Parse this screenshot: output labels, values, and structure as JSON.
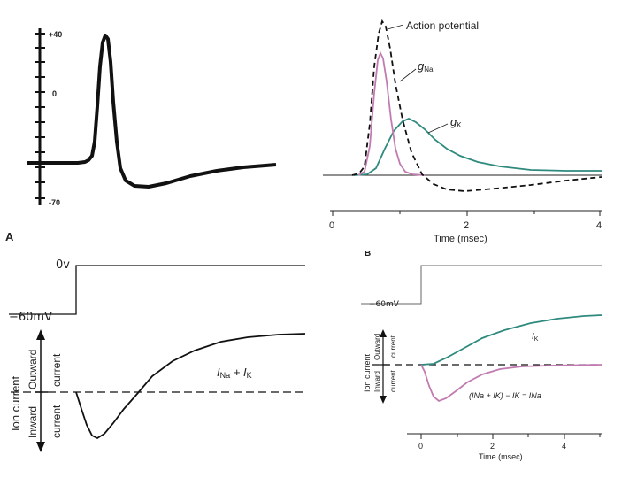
{
  "panel_a_recording": {
    "tick_labels": [
      "+40",
      "0",
      "-70"
    ]
  },
  "panel_a_label": "A",
  "panel_b_conductances": {
    "series": [
      {
        "name": "Action potential",
        "color": "#111111",
        "style": "dashed"
      },
      {
        "name": "gNa",
        "color": "#c27bb0",
        "style": "solid"
      },
      {
        "name": "gK",
        "color": "#2f8a7e",
        "style": "solid"
      }
    ],
    "labels": {
      "action_potential": "Action potential",
      "g_na_letter": "g",
      "g_na_sub": "Na",
      "g_k_letter": "g",
      "g_k_sub": "K"
    },
    "x_ticks": [
      "0",
      "2",
      "4"
    ],
    "x_label": "Time (msec)"
  },
  "panel_b_label_fragment": "B",
  "panel_c_clamp": {
    "voltage_top": "0v",
    "voltage_bottom": "−60mV",
    "ion_current": "Ion current",
    "outward": "Outward",
    "inward": "Inward",
    "current": "current",
    "trace_label_i": "I",
    "trace_label_na": "Na",
    "trace_label_plus": " + I",
    "trace_label_k": "K"
  },
  "panel_d_clamp": {
    "voltage_bottom": "−60mV",
    "ion_current": "Ion current",
    "outward": "Outward",
    "inward": "Inward",
    "current": "current",
    "ik_label": "I",
    "ik_sub": "K",
    "ina_label": "(I",
    "ina_rest": "Na + IK) − IK = INa",
    "x_ticks": [
      "0",
      "2",
      "4"
    ],
    "x_label": "Time (msec)",
    "colors": {
      "ik": "#2f8a7e",
      "ina": "#c27bb0"
    }
  }
}
